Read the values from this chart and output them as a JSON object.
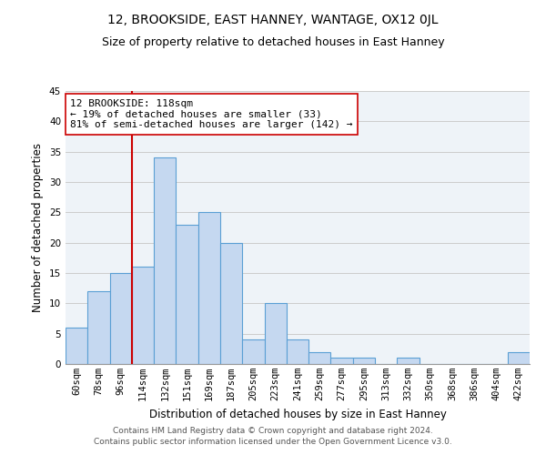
{
  "title": "12, BROOKSIDE, EAST HANNEY, WANTAGE, OX12 0JL",
  "subtitle": "Size of property relative to detached houses in East Hanney",
  "xlabel": "Distribution of detached houses by size in East Hanney",
  "ylabel": "Number of detached properties",
  "categories": [
    "60sqm",
    "78sqm",
    "96sqm",
    "114sqm",
    "132sqm",
    "151sqm",
    "169sqm",
    "187sqm",
    "205sqm",
    "223sqm",
    "241sqm",
    "259sqm",
    "277sqm",
    "295sqm",
    "313sqm",
    "332sqm",
    "350sqm",
    "368sqm",
    "386sqm",
    "404sqm",
    "422sqm"
  ],
  "values": [
    6,
    12,
    15,
    16,
    34,
    23,
    25,
    20,
    4,
    10,
    4,
    2,
    1,
    1,
    0,
    1,
    0,
    0,
    0,
    0,
    2
  ],
  "bar_color": "#c5d8f0",
  "bar_edge_color": "#5a9fd4",
  "vline_index": 3,
  "vline_color": "#cc0000",
  "annotation_text": "12 BROOKSIDE: 118sqm\n← 19% of detached houses are smaller (33)\n81% of semi-detached houses are larger (142) →",
  "annotation_box_color": "#ffffff",
  "annotation_box_edge": "#cc0000",
  "ylim": [
    0,
    45
  ],
  "yticks": [
    0,
    5,
    10,
    15,
    20,
    25,
    30,
    35,
    40,
    45
  ],
  "grid_color": "#cccccc",
  "bg_color": "#eef3f8",
  "footer": "Contains HM Land Registry data © Crown copyright and database right 2024.\nContains public sector information licensed under the Open Government Licence v3.0.",
  "title_fontsize": 10,
  "subtitle_fontsize": 9,
  "xlabel_fontsize": 8.5,
  "ylabel_fontsize": 8.5,
  "tick_fontsize": 7.5,
  "annotation_fontsize": 8,
  "footer_fontsize": 6.5
}
